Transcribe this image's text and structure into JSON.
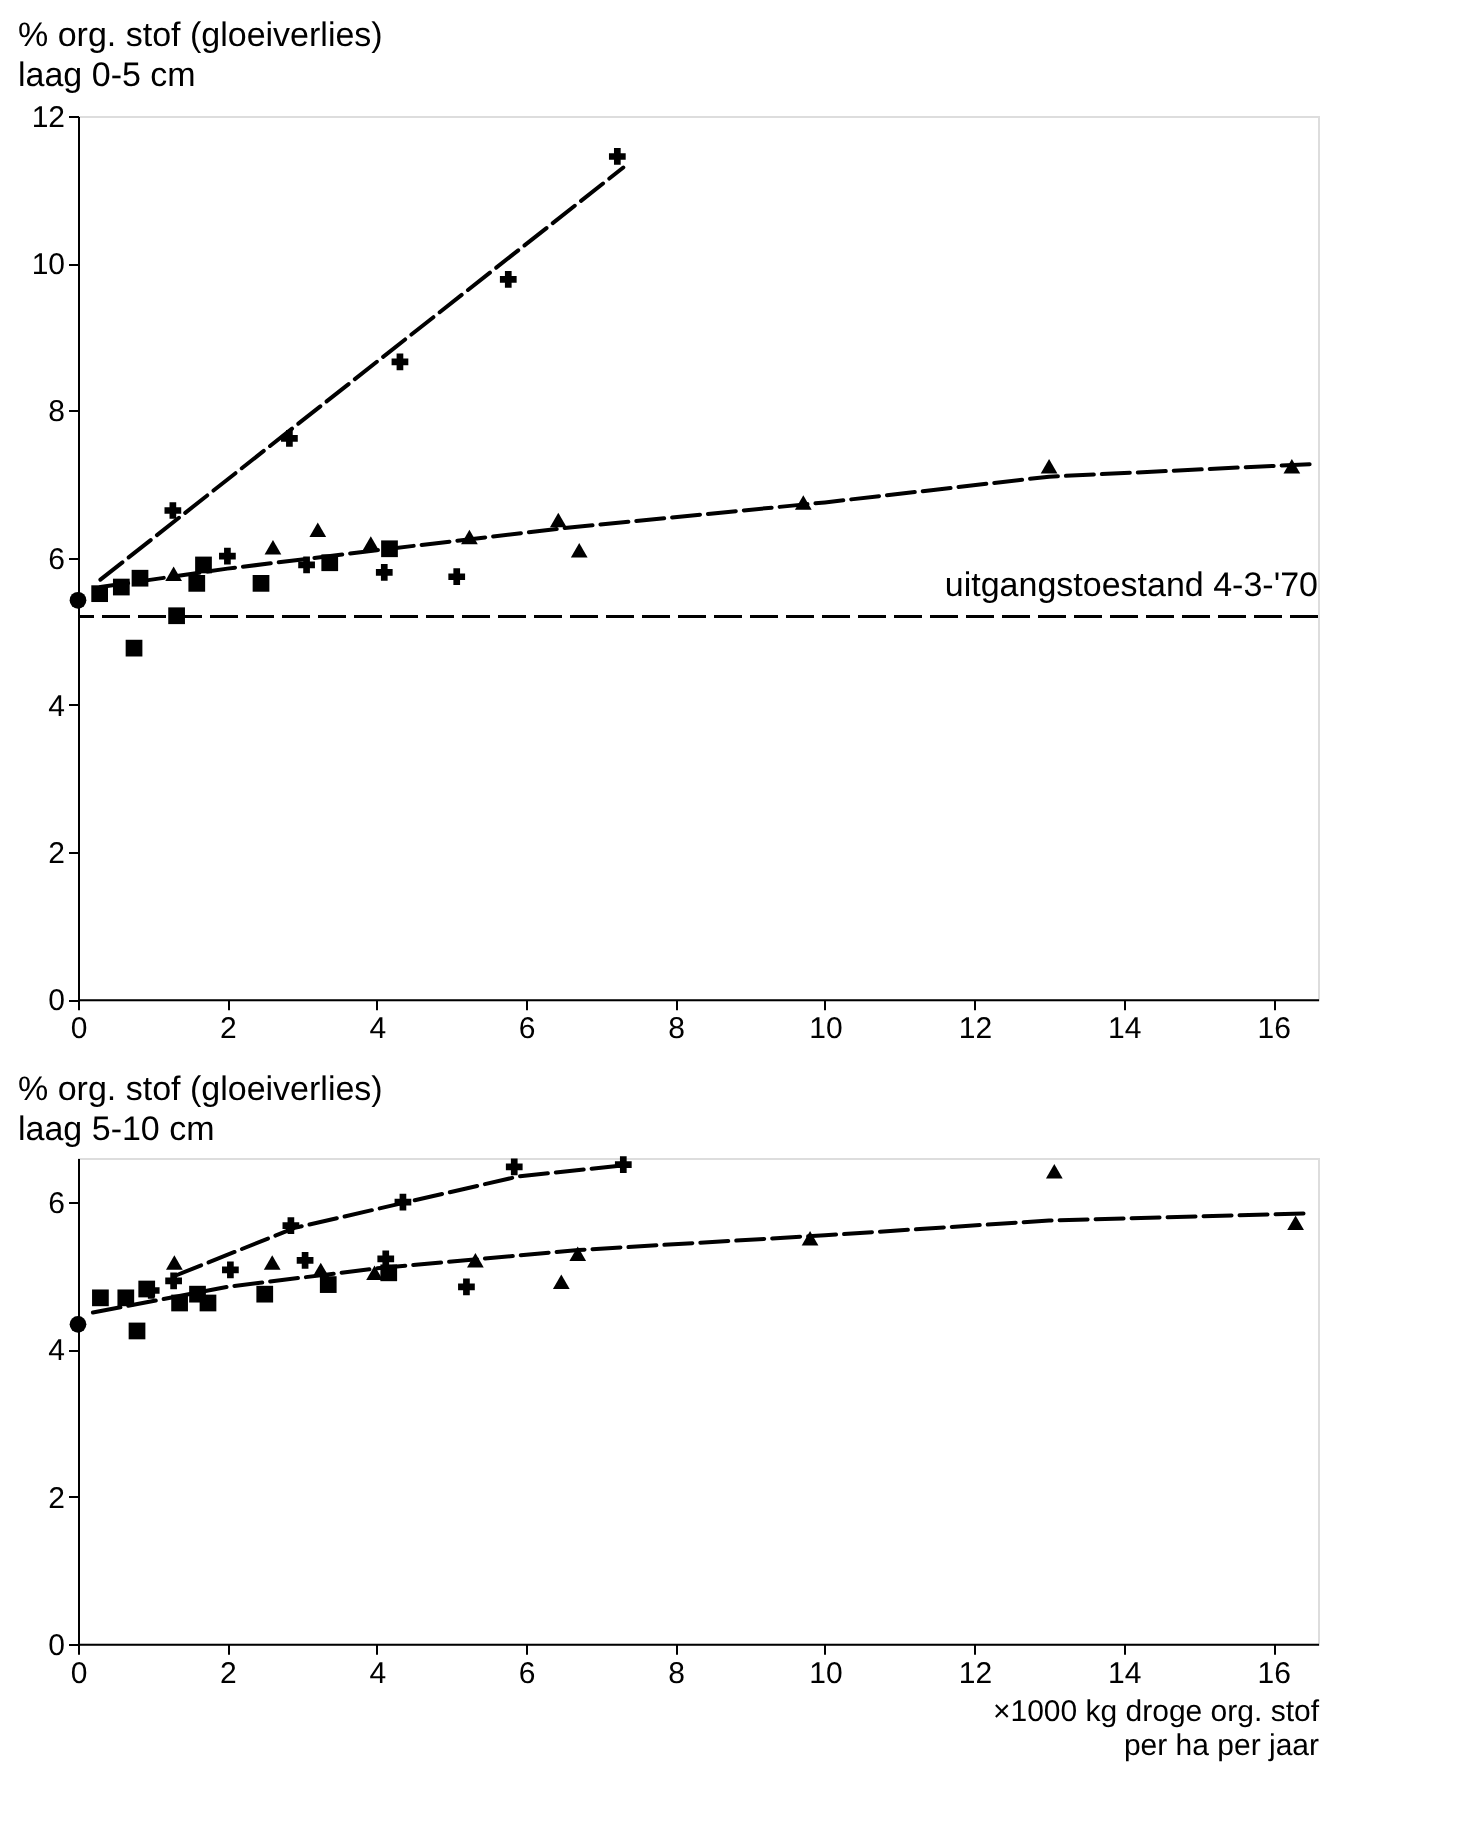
{
  "chart_data": [
    {
      "type": "scatter",
      "title": "% org. stof (gloeiverlies)",
      "subtitle": "laag 0-5 cm",
      "xlim": [
        0,
        16.6
      ],
      "xticks": [
        0,
        2,
        4,
        6,
        8,
        10,
        12,
        14,
        16
      ],
      "ylim": [
        0,
        12
      ],
      "yticks": [
        0,
        2,
        4,
        6,
        8,
        10,
        12
      ],
      "grid": false,
      "ref_lines": [
        {
          "axis": "y",
          "value": 5.2,
          "label": "uitgangstoestand 4-3-'70",
          "line_style": "dashed",
          "color": "#000000"
        }
      ],
      "series": [
        {
          "marker": "cross",
          "color": "#000000",
          "x": [
            1.27,
            2.83,
            4.31,
            5.76,
            7.22
          ],
          "values": [
            6.64,
            7.62,
            8.66,
            9.78,
            11.45
          ]
        },
        {
          "marker": "triangle",
          "color": "#000000",
          "x": [
            3.21,
            6.43,
            9.71,
            13.0,
            16.25
          ],
          "values": [
            6.38,
            6.51,
            6.75,
            7.24,
            7.24
          ]
        },
        {
          "marker": "triangle",
          "color": "#000000",
          "x": [
            1.28,
            2.61,
            3.92,
            5.24,
            6.71
          ],
          "values": [
            5.78,
            6.14,
            6.19,
            6.28,
            6.1
          ]
        },
        {
          "marker": "cross",
          "color": "#000000",
          "x": [
            2.0,
            3.06,
            4.1,
            5.07
          ],
          "values": [
            6.02,
            5.9,
            5.8,
            5.74
          ]
        },
        {
          "marker": "square",
          "color": "#000000",
          "x": [
            0.29,
            0.58,
            0.83,
            1.32,
            1.68
          ],
          "values": [
            5.51,
            5.6,
            5.72,
            5.21,
            5.9
          ]
        },
        {
          "marker": "square",
          "color": "#000000",
          "x": [
            0.75,
            1.59,
            2.45,
            3.37,
            4.17
          ],
          "values": [
            4.77,
            5.65,
            5.65,
            5.93,
            6.12
          ]
        },
        {
          "marker": "circle",
          "color": "#000000",
          "x": [
            0
          ],
          "values": [
            5.42
          ]
        },
        {
          "type": "line",
          "line_style": "dashed",
          "color": "#000000",
          "x": [
            0.3,
            7.3
          ],
          "values": [
            5.7,
            11.3
          ]
        },
        {
          "type": "line",
          "line_style": "dashed",
          "color": "#000000",
          "x": [
            0.3,
            2,
            4,
            6.5,
            10,
            13,
            16.5
          ],
          "values": [
            5.6,
            5.85,
            6.1,
            6.4,
            6.75,
            7.1,
            7.27
          ]
        }
      ]
    },
    {
      "type": "scatter",
      "title": "% org. stof (gloeiverlies)",
      "subtitle": "laag 5-10 cm",
      "xlabel": "×1000 kg droge org. stof\nper ha per jaar",
      "xlim": [
        0,
        16.6
      ],
      "xticks": [
        0,
        2,
        4,
        6,
        8,
        10,
        12,
        14,
        16
      ],
      "ylim": [
        0,
        6.6
      ],
      "yticks": [
        0,
        2,
        4,
        6
      ],
      "grid": false,
      "series": [
        {
          "marker": "cross",
          "color": "#000000",
          "x": [
            1.28,
            2.85,
            4.35,
            5.84,
            7.3
          ],
          "values": [
            4.93,
            5.68,
            6.0,
            6.48,
            6.51
          ]
        },
        {
          "marker": "triangle",
          "color": "#000000",
          "x": [
            3.25,
            6.47,
            9.8,
            13.07,
            16.3
          ],
          "values": [
            5.08,
            4.92,
            5.51,
            6.42,
            5.72
          ]
        },
        {
          "marker": "triangle",
          "color": "#000000",
          "x": [
            1.29,
            2.6,
            3.97,
            5.32,
            6.69
          ],
          "values": [
            5.18,
            5.18,
            5.04,
            5.21,
            5.3
          ]
        },
        {
          "marker": "cross",
          "color": "#000000",
          "x": [
            0.98,
            2.04,
            3.04,
            4.12,
            5.2
          ],
          "values": [
            4.8,
            5.08,
            5.21,
            5.23,
            4.85
          ]
        },
        {
          "marker": "square",
          "color": "#000000",
          "x": [
            0.3,
            0.64,
            0.92,
            1.36,
            1.74
          ],
          "values": [
            4.7,
            4.7,
            4.82,
            4.63,
            4.63
          ]
        },
        {
          "marker": "square",
          "color": "#000000",
          "x": [
            0.79,
            1.6,
            2.5,
            3.35,
            4.16
          ],
          "values": [
            4.25,
            4.75,
            4.75,
            4.88,
            5.04
          ]
        },
        {
          "marker": "circle",
          "color": "#000000",
          "x": [
            0
          ],
          "values": [
            4.34
          ]
        },
        {
          "type": "line",
          "line_style": "dashed",
          "color": "#000000",
          "x": [
            1.3,
            2.9,
            4.4,
            5.9,
            7.3
          ],
          "values": [
            5.0,
            5.65,
            6.0,
            6.35,
            6.5
          ]
        },
        {
          "type": "line",
          "line_style": "dashed",
          "color": "#000000",
          "x": [
            0.2,
            2,
            4,
            6.7,
            10,
            13,
            16.5
          ],
          "values": [
            4.5,
            4.85,
            5.1,
            5.35,
            5.55,
            5.75,
            5.85
          ]
        }
      ]
    }
  ]
}
